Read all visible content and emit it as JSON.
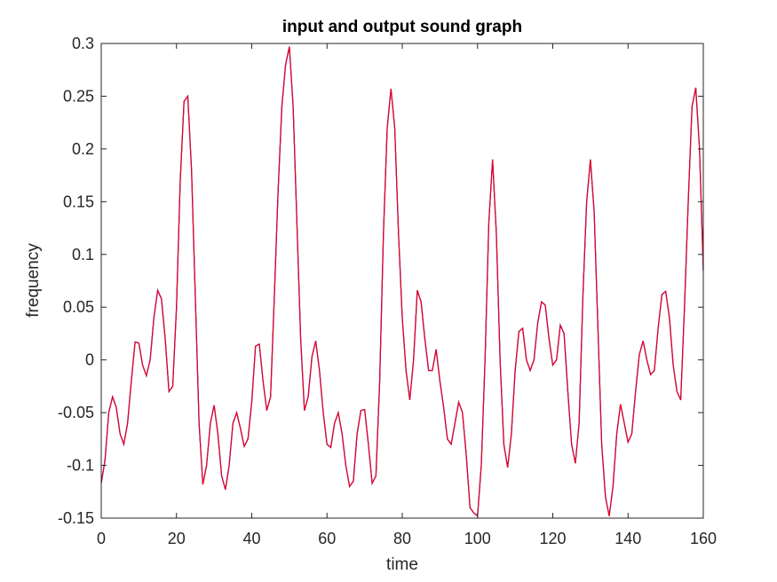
{
  "chart_data": {
    "type": "line",
    "title": "input and output sound graph",
    "xlabel": "time",
    "ylabel": "frequency",
    "xlim": [
      0,
      160
    ],
    "ylim": [
      -0.15,
      0.3
    ],
    "xticks": [
      0,
      20,
      40,
      60,
      80,
      100,
      120,
      140,
      160
    ],
    "yticks": [
      -0.15,
      -0.1,
      -0.05,
      0,
      0.05,
      0.1,
      0.15,
      0.2,
      0.25,
      0.3
    ],
    "xtick_labels": [
      "0",
      "20",
      "40",
      "60",
      "80",
      "100",
      "120",
      "140",
      "160"
    ],
    "ytick_labels": [
      "-0.15",
      "-0.1",
      "-0.05",
      "0",
      "0.05",
      "0.1",
      "0.15",
      "0.2",
      "0.25",
      "0.3"
    ],
    "grid": false,
    "legend": null,
    "x": [
      0,
      1,
      2,
      3,
      4,
      5,
      6,
      7,
      8,
      9,
      10,
      11,
      12,
      13,
      14,
      15,
      16,
      17,
      18,
      19,
      20,
      21,
      22,
      23,
      24,
      25,
      26,
      27,
      28,
      29,
      30,
      31,
      32,
      33,
      34,
      35,
      36,
      37,
      38,
      39,
      40,
      41,
      42,
      43,
      44,
      45,
      46,
      47,
      48,
      49,
      50,
      51,
      52,
      53,
      54,
      55,
      56,
      57,
      58,
      59,
      60,
      61,
      62,
      63,
      64,
      65,
      66,
      67,
      68,
      69,
      70,
      71,
      72,
      73,
      74,
      75,
      76,
      77,
      78,
      79,
      80,
      81,
      82,
      83,
      84,
      85,
      86,
      87,
      88,
      89,
      90,
      91,
      92,
      93,
      94,
      95,
      96,
      97,
      98,
      99,
      100,
      101,
      102,
      103,
      104,
      105,
      106,
      107,
      108,
      109,
      110,
      111,
      112,
      113,
      114,
      115,
      116,
      117,
      118,
      119,
      120,
      121,
      122,
      123,
      124,
      125,
      126,
      127,
      128,
      129,
      130,
      131,
      132,
      133,
      134,
      135,
      136,
      137,
      138,
      139,
      140,
      141,
      142,
      143,
      144,
      145,
      146,
      147,
      148,
      149,
      150,
      151,
      152,
      153,
      154,
      155,
      156,
      157,
      158,
      159,
      160
    ],
    "series": [
      {
        "name": "input",
        "color": "#0000ff",
        "values": [
          -0.117,
          -0.095,
          -0.05,
          -0.035,
          -0.045,
          -0.07,
          -0.08,
          -0.06,
          -0.02,
          0.017,
          0.016,
          -0.005,
          -0.015,
          0.0,
          0.04,
          0.066,
          0.058,
          0.02,
          -0.03,
          -0.025,
          0.05,
          0.17,
          0.245,
          0.25,
          0.18,
          0.06,
          -0.06,
          -0.118,
          -0.1,
          -0.06,
          -0.043,
          -0.07,
          -0.11,
          -0.123,
          -0.1,
          -0.06,
          -0.05,
          -0.065,
          -0.082,
          -0.075,
          -0.04,
          0.013,
          0.015,
          -0.02,
          -0.048,
          -0.035,
          0.06,
          0.16,
          0.24,
          0.28,
          0.297,
          0.24,
          0.13,
          0.02,
          -0.048,
          -0.035,
          0.003,
          0.018,
          -0.01,
          -0.05,
          -0.08,
          -0.083,
          -0.06,
          -0.05,
          -0.07,
          -0.1,
          -0.12,
          -0.115,
          -0.07,
          -0.048,
          -0.047,
          -0.08,
          -0.117,
          -0.11,
          -0.02,
          0.12,
          0.22,
          0.257,
          0.22,
          0.12,
          0.04,
          -0.01,
          -0.038,
          0.0,
          0.066,
          0.055,
          0.02,
          -0.01,
          -0.01,
          0.01,
          -0.02,
          -0.045,
          -0.075,
          -0.08,
          -0.06,
          -0.04,
          -0.05,
          -0.09,
          -0.14,
          -0.145,
          -0.148,
          -0.1,
          0.0,
          0.13,
          0.19,
          0.12,
          0.0,
          -0.08,
          -0.102,
          -0.07,
          -0.01,
          0.027,
          0.03,
          0.0,
          -0.01,
          0.0,
          0.035,
          0.055,
          0.052,
          0.02,
          -0.005,
          0.0,
          0.033,
          0.025,
          -0.03,
          -0.08,
          -0.098,
          -0.06,
          0.06,
          0.15,
          0.19,
          0.14,
          0.03,
          -0.08,
          -0.13,
          -0.148,
          -0.12,
          -0.07,
          -0.042,
          -0.06,
          -0.078,
          -0.07,
          -0.03,
          0.005,
          0.018,
          0.0,
          -0.014,
          -0.01,
          0.03,
          0.062,
          0.065,
          0.04,
          -0.005,
          -0.03,
          -0.038,
          0.05,
          0.15,
          0.24,
          0.258,
          0.2,
          0.085
        ]
      },
      {
        "name": "output",
        "color": "#ff0000",
        "values": [
          -0.117,
          -0.095,
          -0.05,
          -0.035,
          -0.045,
          -0.07,
          -0.08,
          -0.06,
          -0.02,
          0.017,
          0.016,
          -0.005,
          -0.015,
          0.0,
          0.04,
          0.066,
          0.058,
          0.02,
          -0.03,
          -0.025,
          0.05,
          0.17,
          0.245,
          0.25,
          0.18,
          0.06,
          -0.06,
          -0.118,
          -0.1,
          -0.06,
          -0.043,
          -0.07,
          -0.11,
          -0.123,
          -0.1,
          -0.06,
          -0.05,
          -0.065,
          -0.082,
          -0.075,
          -0.04,
          0.013,
          0.015,
          -0.02,
          -0.048,
          -0.035,
          0.06,
          0.16,
          0.24,
          0.28,
          0.297,
          0.24,
          0.13,
          0.02,
          -0.048,
          -0.035,
          0.003,
          0.018,
          -0.01,
          -0.05,
          -0.08,
          -0.083,
          -0.06,
          -0.05,
          -0.07,
          -0.1,
          -0.12,
          -0.115,
          -0.07,
          -0.048,
          -0.047,
          -0.08,
          -0.117,
          -0.11,
          -0.02,
          0.12,
          0.22,
          0.257,
          0.22,
          0.12,
          0.04,
          -0.01,
          -0.038,
          0.0,
          0.066,
          0.055,
          0.02,
          -0.01,
          -0.01,
          0.01,
          -0.02,
          -0.045,
          -0.075,
          -0.08,
          -0.06,
          -0.04,
          -0.05,
          -0.09,
          -0.14,
          -0.145,
          -0.148,
          -0.1,
          0.0,
          0.13,
          0.19,
          0.12,
          0.0,
          -0.08,
          -0.102,
          -0.07,
          -0.01,
          0.027,
          0.03,
          0.0,
          -0.01,
          0.0,
          0.035,
          0.055,
          0.052,
          0.02,
          -0.005,
          0.0,
          0.033,
          0.025,
          -0.03,
          -0.08,
          -0.098,
          -0.06,
          0.06,
          0.15,
          0.19,
          0.14,
          0.03,
          -0.08,
          -0.13,
          -0.148,
          -0.12,
          -0.07,
          -0.042,
          -0.06,
          -0.078,
          -0.07,
          -0.03,
          0.005,
          0.018,
          0.0,
          -0.014,
          -0.01,
          0.03,
          0.062,
          0.065,
          0.04,
          -0.005,
          -0.03,
          -0.038,
          0.05,
          0.15,
          0.24,
          0.258,
          0.2,
          0.085
        ]
      }
    ]
  }
}
